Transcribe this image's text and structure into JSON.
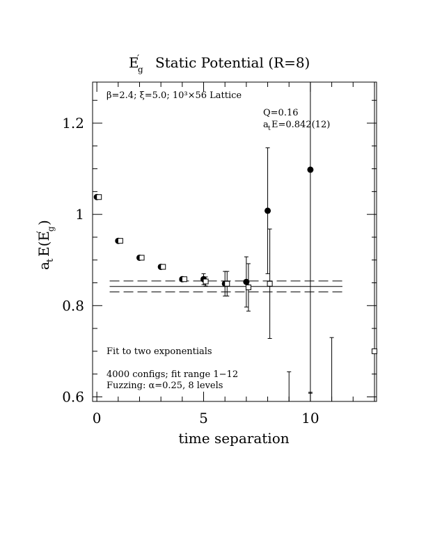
{
  "chart_data": {
    "type": "scatter",
    "title_main": "E",
    "title_sub": "g",
    "title_prime": "′",
    "title_rest": "Static Potential (R=8)",
    "xlabel": "time separation",
    "ylabel_parts": {
      "a": "a",
      "t": "t",
      "E": "E(E",
      "prime": "′",
      "g": "g",
      "close": ")"
    },
    "xlim": [
      -0.2,
      13.1
    ],
    "ylim": [
      0.59,
      1.29
    ],
    "xticks": [
      0,
      5,
      10
    ],
    "xtick_labels": [
      "0",
      "5",
      "10"
    ],
    "yticks": [
      0.6,
      0.8,
      1.0,
      1.2
    ],
    "ytick_labels": [
      "0.6",
      "0.8",
      "1",
      "1.2"
    ],
    "annotations": {
      "lattice": "β=2.4; ξ=5.0; 10³×56 Lattice",
      "q_value": "Q=0.16",
      "fit_energy_a": "a",
      "fit_energy_t": "t",
      "fit_energy_rest": "E=0.842(12)",
      "fit_method": "Fit to two exponentials",
      "configs": "4000 configs; fit range 1−12",
      "fuzzing": "Fuzzing: α=0.25, 8 levels"
    },
    "fit": {
      "central": 0.842,
      "lower": 0.83,
      "upper": 0.854,
      "x_range": [
        0.6,
        11.5
      ]
    },
    "series": [
      {
        "marker": "filled-circle",
        "points": [
          {
            "x": 0,
            "y": 1.038,
            "err": 0.004
          },
          {
            "x": 1,
            "y": 0.942,
            "err": 0.003
          },
          {
            "x": 2,
            "y": 0.905,
            "err": 0.004
          },
          {
            "x": 3,
            "y": 0.885,
            "err": 0.004
          },
          {
            "x": 4,
            "y": 0.858,
            "err": 0.004
          },
          {
            "x": 5,
            "y": 0.858,
            "err": 0.012
          },
          {
            "x": 6,
            "y": 0.848,
            "err": 0.027
          },
          {
            "x": 7,
            "y": 0.852,
            "err": 0.055
          },
          {
            "x": 8,
            "y": 1.008,
            "err": 0.138
          },
          {
            "x": 10,
            "y": 1.098,
            "err": 0.49
          }
        ]
      },
      {
        "marker": "open-square",
        "points": [
          {
            "x": 0.1,
            "y": 1.038,
            "err": 0.004
          },
          {
            "x": 1.1,
            "y": 0.942,
            "err": 0.003
          },
          {
            "x": 2.1,
            "y": 0.905,
            "err": 0.004
          },
          {
            "x": 3.1,
            "y": 0.885,
            "err": 0.004
          },
          {
            "x": 4.1,
            "y": 0.858,
            "err": 0.005
          },
          {
            "x": 5.1,
            "y": 0.853,
            "err": 0.01
          },
          {
            "x": 6.1,
            "y": 0.848,
            "err": 0.027
          },
          {
            "x": 7.1,
            "y": 0.84,
            "err": 0.052
          },
          {
            "x": 8.1,
            "y": 0.848,
            "err": 0.12
          },
          {
            "x": 13.0,
            "y": 0.7,
            "err": 0.0
          }
        ]
      }
    ],
    "clipped_error_bars": [
      {
        "x": 9,
        "top": 0.655
      },
      {
        "x": 10,
        "top": 0.61
      },
      {
        "x": 11,
        "top": 0.73
      }
    ]
  }
}
